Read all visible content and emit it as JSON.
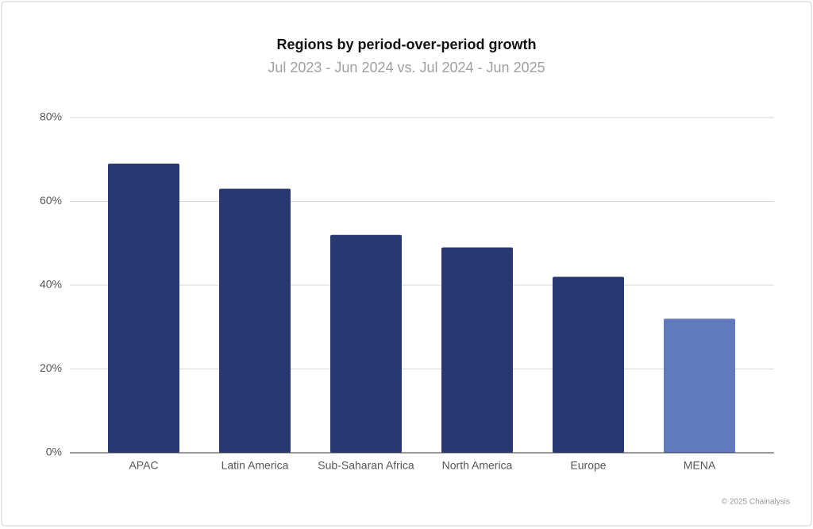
{
  "chart_data": {
    "type": "bar",
    "title": "Regions by period-over-period growth",
    "subtitle": "Jul 2023 - Jun 2024 vs. Jul 2024 - Jun 2025",
    "categories": [
      "APAC",
      "Latin America",
      "Sub-Saharan Africa",
      "North America",
      "Europe",
      "MENA"
    ],
    "values": [
      69,
      63,
      52,
      49,
      42,
      32
    ],
    "colors": [
      "#283870",
      "#283870",
      "#283870",
      "#283870",
      "#283870",
      "#6179bd"
    ],
    "ylim": [
      0,
      80
    ],
    "yticks": [
      {
        "value": 0,
        "label": "0%"
      },
      {
        "value": 20,
        "label": "20%"
      },
      {
        "value": 40,
        "label": "40%"
      },
      {
        "value": 60,
        "label": "60%"
      },
      {
        "value": 80,
        "label": "80%"
      }
    ],
    "grid": true,
    "source": "© 2025 Chainalysis"
  }
}
